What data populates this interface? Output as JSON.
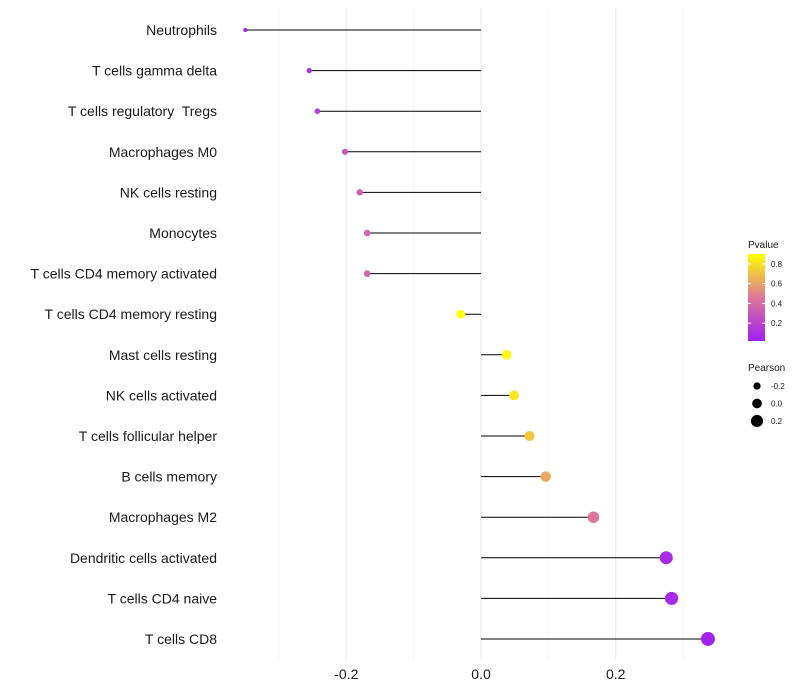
{
  "chart_data": {
    "type": "lollipop",
    "categories": [
      "Neutrophils",
      "T cells gamma delta",
      "T cells regulatory  Tregs",
      "Macrophages M0",
      "NK cells resting",
      "Monocytes",
      "T cells CD4 memory activated",
      "T cells CD4 memory resting",
      "Mast cells resting",
      "NK cells activated",
      "T cells follicular helper",
      "B cells memory",
      "Macrophages M2",
      "Dendritic cells activated",
      "T cells CD4 naive",
      "T cells CD8"
    ],
    "values": [
      -0.35,
      -0.255,
      -0.243,
      -0.202,
      -0.18,
      -0.169,
      -0.169,
      -0.03,
      0.038,
      0.049,
      0.072,
      0.096,
      0.167,
      0.275,
      0.283,
      0.337
    ],
    "pvalues": [
      0.02,
      0.12,
      0.15,
      0.3,
      0.35,
      0.38,
      0.38,
      0.9,
      0.88,
      0.82,
      0.72,
      0.62,
      0.45,
      0.08,
      0.06,
      0.03
    ],
    "xlim": [
      -0.37,
      0.35
    ],
    "xticks": [
      -0.2,
      0.0,
      0.2
    ],
    "xtick_labels": [
      "-0.2",
      "0.0",
      "0.2"
    ],
    "grid": true,
    "color_scale": {
      "low": "#a020f0",
      "mid": "#dd7799",
      "high": "#ffff00"
    },
    "legend": {
      "pvalue": {
        "title": "Pvalue",
        "ticks": [
          "0.8",
          "0.6",
          "0.4",
          "0.2"
        ],
        "tick_values": [
          0.8,
          0.6,
          0.4,
          0.2
        ],
        "range": [
          0.02,
          0.9
        ]
      },
      "pearson": {
        "title": "Pearson",
        "items": [
          "-0.2",
          "0.0",
          "0.2"
        ],
        "item_values": [
          -0.2,
          0.0,
          0.2
        ]
      }
    },
    "size_range_values": [
      -0.35,
      0.34
    ]
  }
}
